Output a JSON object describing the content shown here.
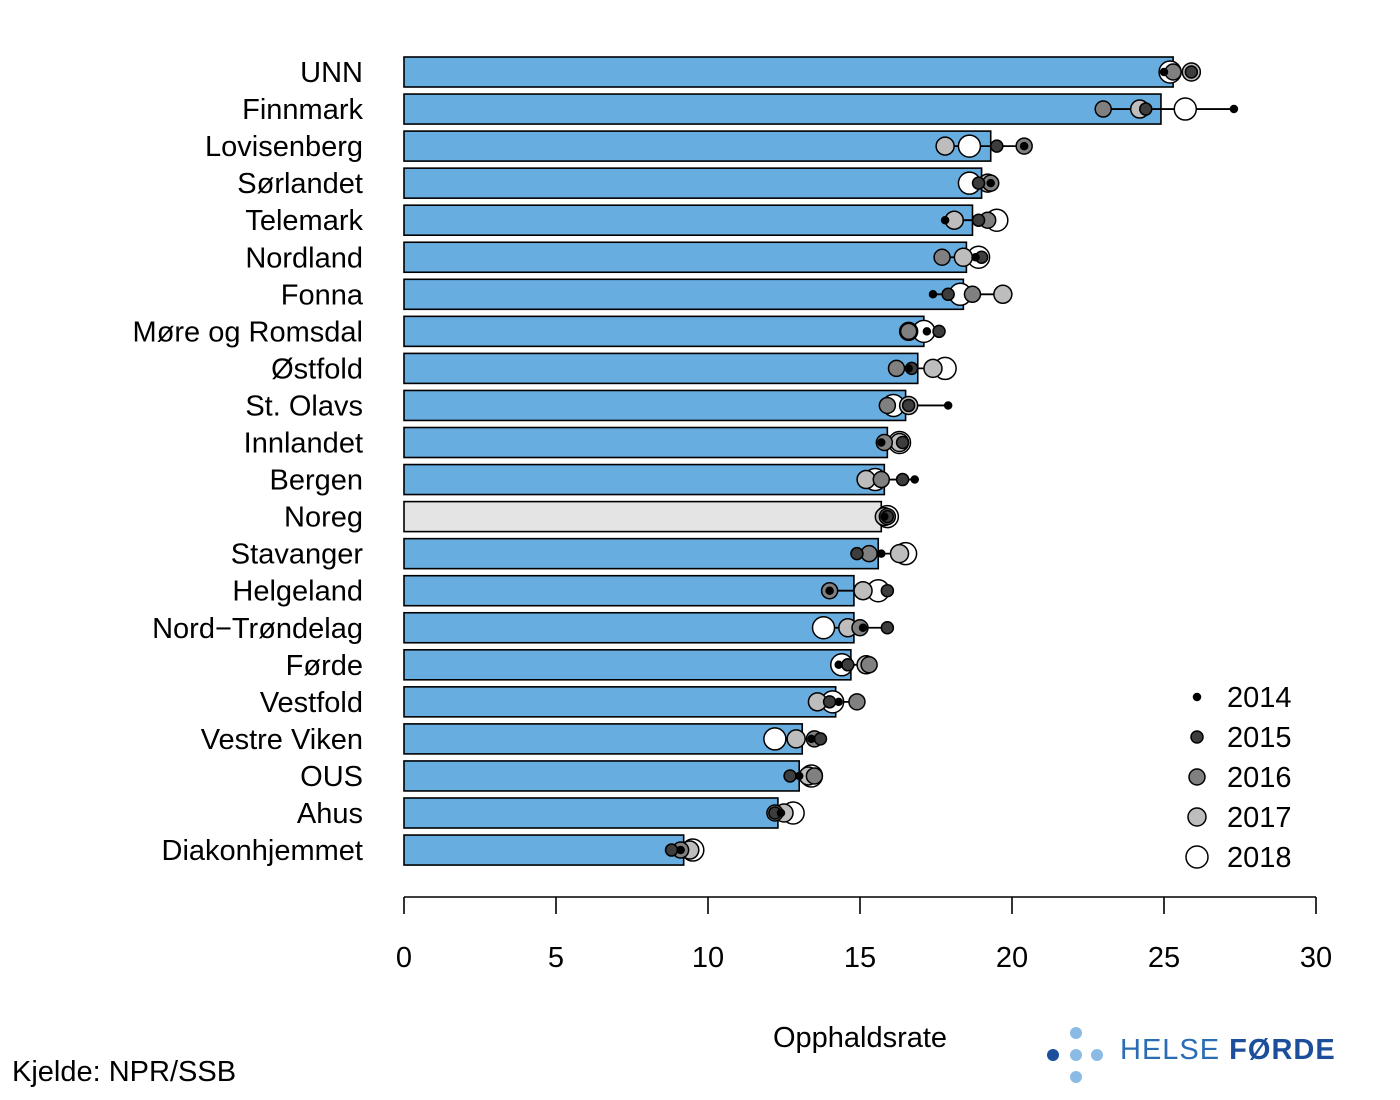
{
  "chart_data": {
    "type": "bar",
    "orientation": "horizontal",
    "xlabel": "Opphaldsrate",
    "xlim": [
      0,
      30
    ],
    "xticks": [
      0,
      5,
      10,
      15,
      20,
      25,
      30
    ],
    "categories": [
      "UNN",
      "Finnmark",
      "Lovisenberg",
      "Sørlandet",
      "Telemark",
      "Nordland",
      "Fonna",
      "Møre og Romsdal",
      "Østfold",
      "St. Olavs",
      "Innlandet",
      "Bergen",
      "Noreg",
      "Stavanger",
      "Helgeland",
      "Nord−Trøndelag",
      "Førde",
      "Vestfold",
      "Vestre Viken",
      "OUS",
      "Ahus",
      "Diakonhjemmet"
    ],
    "values": [
      25.3,
      24.9,
      19.3,
      19.0,
      18.7,
      18.5,
      18.4,
      17.1,
      16.9,
      16.5,
      15.9,
      15.8,
      15.7,
      15.6,
      14.8,
      14.8,
      14.7,
      14.2,
      13.1,
      13.0,
      12.3,
      9.2
    ],
    "highlight": "Noreg",
    "bar_color": "#67ade0",
    "highlight_color": "#e4e4e4",
    "years": [
      "2014",
      "2015",
      "2016",
      "2017",
      "2018"
    ],
    "year_fills": [
      "#000000",
      "#3d3d3d",
      "#808080",
      "#bdbdbd",
      "#ffffff"
    ],
    "yearly": {
      "UNN": [
        25.0,
        25.9,
        25.3,
        25.9,
        25.2
      ],
      "Finnmark": [
        27.3,
        24.4,
        23.0,
        24.2,
        25.7
      ],
      "Lovisenberg": [
        20.4,
        19.5,
        20.4,
        17.8,
        18.6
      ],
      "Sørlandet": [
        19.3,
        18.9,
        19.3,
        19.2,
        18.6
      ],
      "Telemark": [
        17.8,
        18.9,
        19.2,
        18.1,
        19.5
      ],
      "Nordland": [
        18.8,
        19.0,
        17.7,
        18.4,
        18.9
      ],
      "Fonna": [
        17.4,
        17.9,
        18.7,
        19.7,
        18.3
      ],
      "Møre og Romsdal": [
        17.2,
        17.6,
        16.6,
        16.6,
        17.1
      ],
      "Østfold": [
        16.6,
        16.7,
        16.2,
        17.4,
        17.8
      ],
      "St. Olavs": [
        17.9,
        16.6,
        15.9,
        16.6,
        16.1
      ],
      "Innlandet": [
        15.7,
        16.4,
        15.8,
        16.3,
        16.3
      ],
      "Bergen": [
        16.8,
        16.4,
        15.7,
        15.2,
        15.5
      ],
      "Noreg": [
        15.8,
        15.9,
        15.9,
        15.8,
        15.9
      ],
      "Stavanger": [
        15.7,
        14.9,
        15.3,
        16.3,
        16.5
      ],
      "Helgeland": [
        14.0,
        15.9,
        14.0,
        15.1,
        15.6
      ],
      "Nord−Trøndelag": [
        15.1,
        15.9,
        15.0,
        14.6,
        13.8
      ],
      "Førde": [
        14.3,
        14.6,
        15.3,
        15.2,
        14.4
      ],
      "Vestfold": [
        14.3,
        14.0,
        14.9,
        13.6,
        14.1
      ],
      "Vestre Viken": [
        13.4,
        13.7,
        13.5,
        12.9,
        12.2
      ],
      "OUS": [
        13.0,
        12.7,
        13.5,
        13.3,
        13.4
      ],
      "Ahus": [
        12.4,
        12.2,
        12.2,
        12.5,
        12.8
      ],
      "Diakonhjemmet": [
        9.1,
        8.8,
        9.1,
        9.4,
        9.5
      ]
    },
    "legend_position": "bottom-right"
  },
  "source": "Kjelde: NPR/SSB",
  "logo": {
    "text_light": "HELSE ",
    "text_bold": "FØRDE",
    "color": "#2a6db5",
    "dot_dark": "#1b4f9c",
    "dot_light": "#8bbbe5"
  }
}
